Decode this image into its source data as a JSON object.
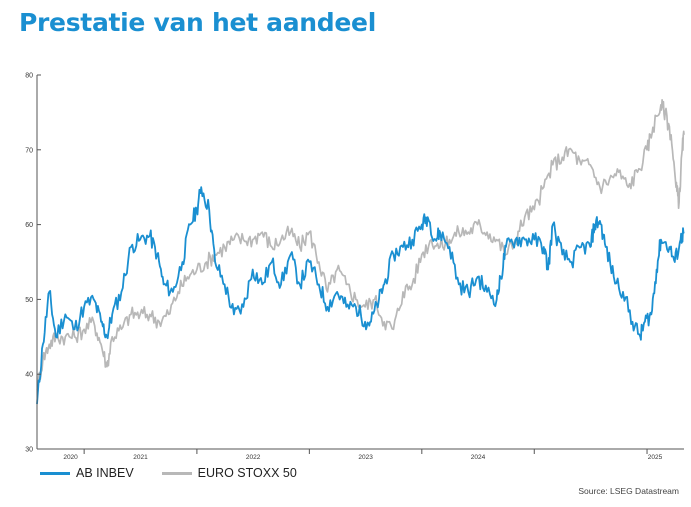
{
  "title": "Prestatie van het aandeel",
  "source": "Source: LSEG Datastream",
  "colors": {
    "title": "#1a8fd1",
    "ab_inbev": "#1a8fd1",
    "euro_stoxx": "#b8b8b8",
    "axis": "#555555"
  },
  "chart_data": {
    "type": "line",
    "title": "",
    "xlabel": "",
    "ylabel": "",
    "ylim": [
      30,
      80
    ],
    "yticks": [
      30,
      40,
      50,
      60,
      70,
      80
    ],
    "xlim": [
      "2019-08-01",
      "2025-05-01"
    ],
    "xticks": [
      {
        "label": "2020",
        "date": "2020-01-01"
      },
      {
        "label": "2021",
        "date": "2021-01-01"
      },
      {
        "label": "2022",
        "date": "2022-01-01"
      },
      {
        "label": "2023",
        "date": "2023-01-01"
      },
      {
        "label": "2024",
        "date": "2024-01-01"
      },
      {
        "label": "2025",
        "date": "2025-01-01"
      }
    ],
    "legend_position": "bottom-left",
    "grid": false,
    "series": [
      {
        "name": "AB INBEV",
        "color": "#1a8fd1",
        "points": [
          [
            "2019-08-01",
            36
          ],
          [
            "2019-08-20",
            44
          ],
          [
            "2019-09-10",
            51
          ],
          [
            "2019-10-01",
            45
          ],
          [
            "2019-11-01",
            48
          ],
          [
            "2019-12-01",
            46
          ],
          [
            "2020-01-01",
            49
          ],
          [
            "2020-02-01",
            50
          ],
          [
            "2020-02-25",
            47
          ],
          [
            "2020-03-15",
            45
          ],
          [
            "2020-04-01",
            48
          ],
          [
            "2020-05-01",
            51
          ],
          [
            "2020-06-01",
            57
          ],
          [
            "2020-07-01",
            58
          ],
          [
            "2020-08-01",
            58.5
          ],
          [
            "2020-08-25",
            56
          ],
          [
            "2020-09-15",
            52
          ],
          [
            "2020-10-15",
            51
          ],
          [
            "2020-11-15",
            55
          ],
          [
            "2020-12-10",
            60
          ],
          [
            "2021-01-01",
            62
          ],
          [
            "2021-01-15",
            65
          ],
          [
            "2021-02-10",
            62
          ],
          [
            "2021-03-01",
            55
          ],
          [
            "2021-04-01",
            52
          ],
          [
            "2021-05-01",
            48
          ],
          [
            "2021-06-01",
            49
          ],
          [
            "2021-07-01",
            54
          ],
          [
            "2021-08-01",
            52
          ],
          [
            "2021-09-01",
            55
          ],
          [
            "2021-10-01",
            52
          ],
          [
            "2021-11-01",
            56
          ],
          [
            "2021-12-01",
            52
          ],
          [
            "2022-01-01",
            55
          ],
          [
            "2022-02-01",
            52
          ],
          [
            "2022-03-01",
            49
          ],
          [
            "2022-04-01",
            51
          ],
          [
            "2022-05-01",
            49
          ],
          [
            "2022-06-01",
            49
          ],
          [
            "2022-07-01",
            47
          ],
          [
            "2022-07-20",
            47
          ],
          [
            "2022-08-15",
            50
          ],
          [
            "2022-09-01",
            52
          ],
          [
            "2022-10-01",
            56
          ],
          [
            "2022-11-01",
            57
          ],
          [
            "2022-12-01",
            58
          ],
          [
            "2023-01-01",
            60
          ],
          [
            "2023-01-20",
            61
          ],
          [
            "2023-02-15",
            58
          ],
          [
            "2023-03-01",
            59
          ],
          [
            "2023-04-01",
            57
          ],
          [
            "2023-05-01",
            52
          ],
          [
            "2023-06-01",
            51
          ],
          [
            "2023-07-01",
            53
          ],
          [
            "2023-08-01",
            51
          ],
          [
            "2023-09-01",
            50
          ],
          [
            "2023-09-15",
            53
          ],
          [
            "2023-10-01",
            57
          ],
          [
            "2023-11-01",
            58
          ],
          [
            "2023-12-01",
            58
          ],
          [
            "2024-01-01",
            58
          ],
          [
            "2024-02-01",
            57
          ],
          [
            "2024-02-15",
            54
          ],
          [
            "2024-03-01",
            60
          ],
          [
            "2024-04-01",
            56
          ],
          [
            "2024-05-01",
            55
          ],
          [
            "2024-06-01",
            57
          ],
          [
            "2024-07-01",
            57
          ],
          [
            "2024-07-15",
            60
          ],
          [
            "2024-08-01",
            60.5
          ],
          [
            "2024-08-20",
            57
          ],
          [
            "2024-09-15",
            53
          ],
          [
            "2024-10-15",
            51
          ],
          [
            "2024-11-15",
            47
          ],
          [
            "2024-12-10",
            45
          ],
          [
            "2024-12-25",
            47
          ],
          [
            "2025-01-15",
            48
          ],
          [
            "2025-02-01",
            54
          ],
          [
            "2025-02-15",
            58
          ],
          [
            "2025-03-15",
            57
          ],
          [
            "2025-04-01",
            55
          ],
          [
            "2025-04-20",
            58
          ],
          [
            "2025-05-01",
            59
          ]
        ]
      },
      {
        "name": "EURO STOXX 50",
        "color": "#b8b8b8",
        "points": [
          [
            "2019-08-01",
            38
          ],
          [
            "2019-08-20",
            42
          ],
          [
            "2019-09-10",
            44
          ],
          [
            "2019-10-01",
            45
          ],
          [
            "2019-11-01",
            45
          ],
          [
            "2019-12-01",
            45
          ],
          [
            "2020-01-01",
            46
          ],
          [
            "2020-02-01",
            47
          ],
          [
            "2020-02-25",
            44
          ],
          [
            "2020-03-15",
            41
          ],
          [
            "2020-04-01",
            45
          ],
          [
            "2020-05-01",
            46
          ],
          [
            "2020-06-01",
            48
          ],
          [
            "2020-07-01",
            48
          ],
          [
            "2020-08-01",
            48
          ],
          [
            "2020-09-01",
            47
          ],
          [
            "2020-10-01",
            48
          ],
          [
            "2020-11-01",
            51
          ],
          [
            "2020-12-01",
            53
          ],
          [
            "2021-01-01",
            54
          ],
          [
            "2021-02-01",
            55
          ],
          [
            "2021-03-01",
            56
          ],
          [
            "2021-04-01",
            57
          ],
          [
            "2021-05-01",
            58
          ],
          [
            "2021-06-01",
            58
          ],
          [
            "2021-07-01",
            58
          ],
          [
            "2021-08-01",
            59
          ],
          [
            "2021-09-01",
            57
          ],
          [
            "2021-10-01",
            58
          ],
          [
            "2021-11-01",
            59
          ],
          [
            "2021-12-01",
            57
          ],
          [
            "2022-01-01",
            59
          ],
          [
            "2022-02-01",
            55
          ],
          [
            "2022-03-01",
            51
          ],
          [
            "2022-04-01",
            54
          ],
          [
            "2022-05-01",
            52
          ],
          [
            "2022-06-01",
            50
          ],
          [
            "2022-07-01",
            49
          ],
          [
            "2022-08-01",
            50
          ],
          [
            "2022-09-01",
            47
          ],
          [
            "2022-10-01",
            46
          ],
          [
            "2022-11-01",
            51
          ],
          [
            "2022-12-01",
            52
          ],
          [
            "2023-01-01",
            56
          ],
          [
            "2023-02-01",
            58
          ],
          [
            "2023-03-01",
            57
          ],
          [
            "2023-04-01",
            58
          ],
          [
            "2023-05-01",
            59
          ],
          [
            "2023-06-01",
            59
          ],
          [
            "2023-07-01",
            60
          ],
          [
            "2023-08-01",
            59
          ],
          [
            "2023-09-01",
            58
          ],
          [
            "2023-10-01",
            56
          ],
          [
            "2023-11-01",
            58
          ],
          [
            "2023-12-01",
            61
          ],
          [
            "2024-01-01",
            62
          ],
          [
            "2024-02-01",
            65
          ],
          [
            "2024-03-01",
            68
          ],
          [
            "2024-04-01",
            69
          ],
          [
            "2024-05-01",
            70
          ],
          [
            "2024-06-01",
            68
          ],
          [
            "2024-07-01",
            68
          ],
          [
            "2024-08-01",
            65
          ],
          [
            "2024-09-01",
            66
          ],
          [
            "2024-10-01",
            67
          ],
          [
            "2024-11-01",
            65
          ],
          [
            "2024-12-01",
            67
          ],
          [
            "2025-01-01",
            70
          ],
          [
            "2025-01-20",
            73
          ],
          [
            "2025-02-15",
            76
          ],
          [
            "2025-03-01",
            75
          ],
          [
            "2025-03-20",
            72
          ],
          [
            "2025-04-05",
            65
          ],
          [
            "2025-04-15",
            63
          ],
          [
            "2025-04-25",
            70
          ],
          [
            "2025-05-01",
            72
          ]
        ]
      }
    ]
  }
}
